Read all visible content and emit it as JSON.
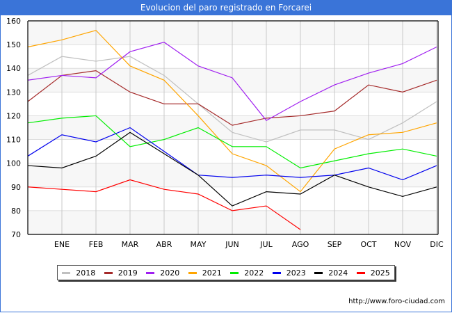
{
  "chart_data": {
    "type": "line",
    "title": "Evolucion del paro registrado en Forcarei",
    "xlabel": "",
    "ylabel": "",
    "categories": [
      "",
      "ENE",
      "FEB",
      "MAR",
      "ABR",
      "MAY",
      "JUN",
      "JUL",
      "AGO",
      "SEP",
      "OCT",
      "NOV",
      "DIC"
    ],
    "ylim": [
      70,
      160
    ],
    "yticks": [
      70,
      80,
      90,
      100,
      110,
      120,
      130,
      140,
      150,
      160
    ],
    "grid": true,
    "legend_position": "bottom",
    "series": [
      {
        "name": "2018",
        "color": "#c0c0c0",
        "values": [
          137,
          145,
          143,
          145,
          137,
          125,
          113,
          109,
          114,
          114,
          110,
          117,
          126
        ]
      },
      {
        "name": "2019",
        "color": "#a52a2a",
        "values": [
          126,
          137,
          139,
          130,
          125,
          125,
          116,
          119,
          120,
          122,
          133,
          130,
          135
        ]
      },
      {
        "name": "2020",
        "color": "#a020f0",
        "values": [
          135,
          137,
          136,
          147,
          151,
          141,
          136,
          118,
          126,
          133,
          138,
          142,
          149
        ]
      },
      {
        "name": "2021",
        "color": "#ffa500",
        "values": [
          149,
          152,
          156,
          141,
          135,
          120,
          104,
          99,
          88,
          106,
          112,
          113,
          117
        ]
      },
      {
        "name": "2022",
        "color": "#00ee00",
        "values": [
          117,
          119,
          120,
          107,
          110,
          115,
          107,
          107,
          98,
          101,
          104,
          106,
          103
        ]
      },
      {
        "name": "2023",
        "color": "#0000ee",
        "values": [
          103,
          112,
          109,
          115,
          105,
          95,
          94,
          95,
          94,
          95,
          98,
          93,
          99
        ]
      },
      {
        "name": "2024",
        "color": "#000000",
        "values": [
          99,
          98,
          103,
          113,
          104,
          95,
          82,
          88,
          87,
          95,
          90,
          86,
          90
        ]
      },
      {
        "name": "2025",
        "color": "#ff0000",
        "values": [
          90,
          89,
          88,
          93,
          89,
          87,
          80,
          82,
          72
        ]
      }
    ]
  },
  "source": "http://www.foro-ciudad.com"
}
